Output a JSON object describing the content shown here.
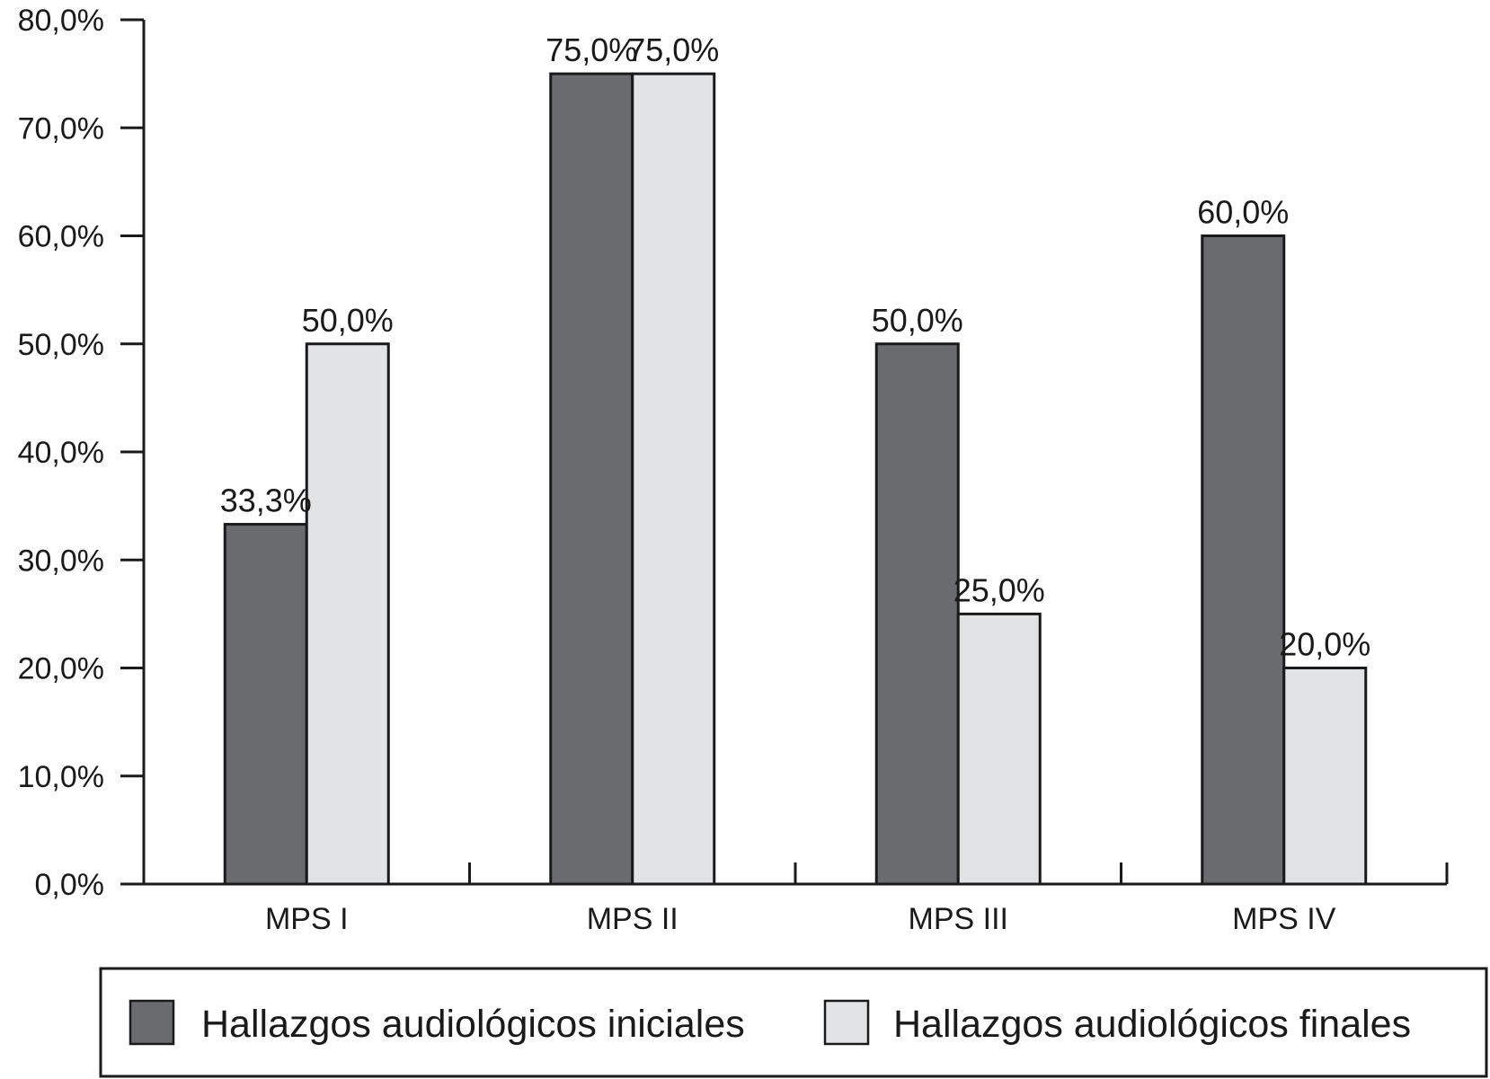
{
  "chart_data": {
    "type": "bar",
    "categories": [
      "MPS I",
      "MPS II",
      "MPS III",
      "MPS IV"
    ],
    "series": [
      {
        "name": "Hallazgos audiológicos iniciales",
        "values": [
          33.3,
          75.0,
          50.0,
          60.0
        ],
        "labels": [
          "33,3%",
          "75,0%",
          "50,0%",
          "60,0%"
        ],
        "color": "#6a6b6f"
      },
      {
        "name": "Hallazgos audiológicos finales",
        "values": [
          50.0,
          75.0,
          25.0,
          20.0
        ],
        "labels": [
          "50,0%",
          "75,0%",
          "25,0%",
          "20,0%"
        ],
        "color": "#e2e3e5"
      }
    ],
    "ylim": [
      0,
      80
    ],
    "yticks": [
      0,
      10,
      20,
      30,
      40,
      50,
      60,
      70,
      80
    ],
    "ytick_labels": [
      "0,0%",
      "10,0%",
      "20,0%",
      "30,0%",
      "40,0%",
      "50,0%",
      "60,0%",
      "70,0%",
      "80,0%"
    ],
    "title": "",
    "xlabel": "",
    "ylabel": "",
    "grid": false,
    "legend_position": "bottom"
  }
}
